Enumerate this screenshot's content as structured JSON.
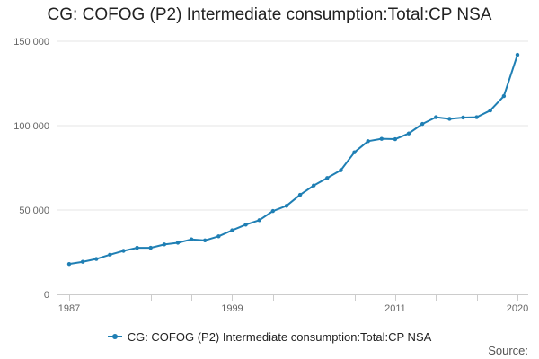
{
  "chart_data": {
    "type": "line",
    "title": "CG: COFOG (P2) Intermediate consumption:Total:CP NSA",
    "xlabel": "",
    "ylabel": "",
    "x": [
      1987,
      1988,
      1989,
      1990,
      1991,
      1992,
      1993,
      1994,
      1995,
      1996,
      1997,
      1998,
      1999,
      2000,
      2001,
      2002,
      2003,
      2004,
      2005,
      2006,
      2007,
      2008,
      2009,
      2010,
      2011,
      2012,
      2013,
      2014,
      2015,
      2016,
      2017,
      2018,
      2019,
      2020
    ],
    "series": [
      {
        "name": "CG: COFOG (P2) Intermediate consumption:Total:CP NSA",
        "color": "#1f7fb4",
        "values": [
          18000,
          19300,
          21000,
          23500,
          25800,
          27600,
          27600,
          29600,
          30600,
          32600,
          32000,
          34400,
          38000,
          41300,
          44000,
          49400,
          52500,
          59000,
          64500,
          69000,
          73600,
          84200,
          90800,
          92200,
          92000,
          95400,
          101000,
          105000,
          104000,
          104800,
          105000,
          109000,
          117500,
          142000
        ]
      }
    ],
    "xticks": [
      1987,
      1999,
      2011,
      2020
    ],
    "yticks": [
      0,
      50000,
      100000,
      150000
    ],
    "ytick_labels": [
      "0",
      "50 000",
      "100 000",
      "150 000"
    ],
    "xlim": [
      1987,
      2020
    ],
    "ylim": [
      0,
      150000
    ],
    "grid": true,
    "legend_position": "bottom-center"
  },
  "legend_label": "CG: COFOG (P2) Intermediate consumption:Total:CP NSA",
  "source_label": "Source:"
}
